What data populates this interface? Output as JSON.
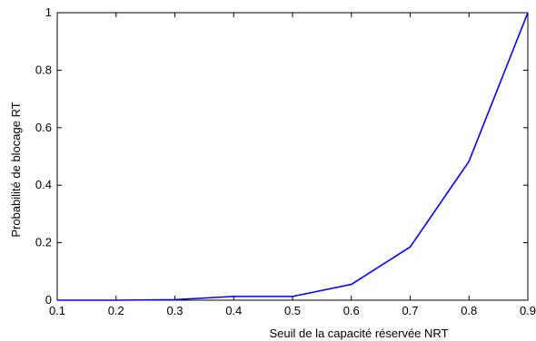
{
  "chart_data": {
    "type": "line",
    "xlabel": "Seuil de la capacité réservée NRT",
    "ylabel": "Probabilité de blocage RT",
    "xlim": [
      0.1,
      0.9
    ],
    "ylim": [
      0,
      1
    ],
    "x_ticks": [
      "0.1",
      "0.2",
      "0.3",
      "0.4",
      "0.5",
      "0.6",
      "0.7",
      "0.8",
      "0.9"
    ],
    "y_ticks": [
      "0",
      "0.2",
      "0.4",
      "0.6",
      "0.8",
      "1"
    ],
    "grid": false,
    "series": [
      {
        "color": "#0000ff",
        "x": [
          0.1,
          0.2,
          0.3,
          0.4,
          0.5,
          0.6,
          0.7,
          0.8,
          0.9
        ],
        "y": [
          0.0,
          0.0,
          0.002,
          0.013,
          0.013,
          0.055,
          0.185,
          0.483,
          1.0
        ]
      }
    ]
  }
}
